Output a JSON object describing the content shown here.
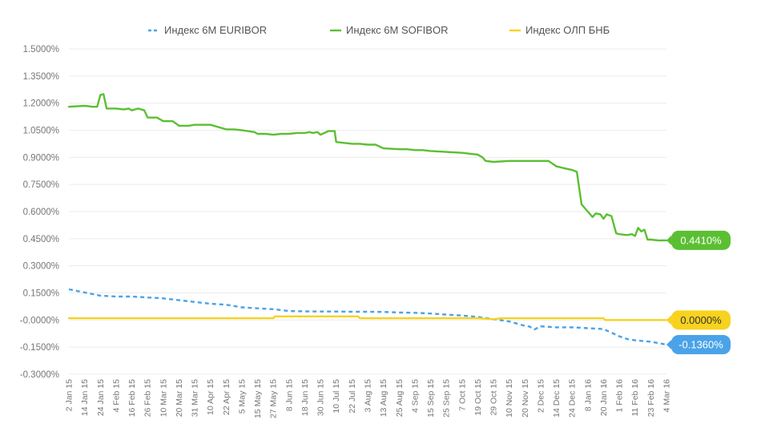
{
  "chart_data": {
    "type": "line",
    "title": "",
    "xlabel": "",
    "ylabel": "",
    "ylim": [
      -0.3,
      1.5
    ],
    "y_ticks": [
      "1.5000%",
      "1.3500%",
      "1.2000%",
      "1.0500%",
      "0.9000%",
      "0.7500%",
      "0.6000%",
      "0.4500%",
      "0.3000%",
      "0.1500%",
      "-0.0000%",
      "-0.1500%",
      "-0.3000%"
    ],
    "x_ticks": [
      "2 Jan 15",
      "14 Jan 15",
      "24 Jan 15",
      "4 Feb 15",
      "16 Feb 15",
      "26 Feb 15",
      "10 Mar 15",
      "20 Mar 15",
      "31 Mar 15",
      "10 Apr 15",
      "22 Apr 15",
      "5 May 15",
      "15 May 15",
      "27 May 15",
      "8 Jun 15",
      "18 Jun 15",
      "30 Jun 15",
      "10 Jul 15",
      "22 Jul 15",
      "3 Aug 15",
      "13 Aug 15",
      "25 Aug 15",
      "4 Sep 15",
      "15 Sep 15",
      "25 Sep 15",
      "7 Oct 15",
      "19 Oct 15",
      "29 Oct 15",
      "10 Nov 15",
      "20 Nov 15",
      "2 Dec 15",
      "14 Dec 15",
      "24 Dec 15",
      "8 Jan 16",
      "20 Jan 16",
      "1 Feb 16",
      "11 Feb 16",
      "23 Feb 16",
      "4 Mar 16"
    ],
    "legend_position": "top",
    "series": [
      {
        "name": "Индекс 6M EURIBOR",
        "color": "#4aa3e8",
        "style": "dashed",
        "end_label": "-0.1360%",
        "x": [
          0,
          2,
          3,
          4,
          6,
          8,
          9,
          10,
          11,
          12,
          13,
          14,
          15,
          16,
          17,
          18,
          19,
          20,
          21,
          22,
          23,
          24,
          25,
          26,
          27,
          28,
          28.5,
          29,
          29.3,
          29.6,
          30,
          31,
          32,
          33,
          34,
          34.5,
          35,
          35.5,
          36,
          37,
          38
        ],
        "values": [
          0.17,
          0.135,
          0.13,
          0.13,
          0.12,
          0.1,
          0.09,
          0.085,
          0.07,
          0.065,
          0.06,
          0.05,
          0.048,
          0.047,
          0.047,
          0.046,
          0.046,
          0.045,
          0.042,
          0.04,
          0.036,
          0.03,
          0.025,
          0.017,
          0.005,
          -0.008,
          -0.02,
          -0.032,
          -0.036,
          -0.052,
          -0.035,
          -0.04,
          -0.04,
          -0.045,
          -0.05,
          -0.07,
          -0.09,
          -0.105,
          -0.112,
          -0.12,
          -0.136
        ]
      },
      {
        "name": "Индекс 6M SOFIBOR",
        "color": "#5bbf32",
        "style": "solid",
        "end_label": "0.4410%",
        "x": [
          0,
          1,
          1.5,
          1.8,
          2,
          2.2,
          2.4,
          3,
          3.5,
          3.8,
          4,
          4.4,
          4.8,
          5,
          5.6,
          6,
          6.6,
          7,
          7.6,
          8,
          8.5,
          9,
          10,
          10.5,
          11,
          11.8,
          12,
          12.5,
          13,
          13.5,
          14,
          14.5,
          15,
          15.3,
          15.5,
          15.8,
          16,
          16.5,
          16.9,
          17,
          17.5,
          18,
          18.5,
          19,
          19.5,
          20,
          21,
          21.5,
          22,
          22.5,
          23,
          24,
          25,
          25.5,
          26,
          26.3,
          26.5,
          27,
          28,
          29,
          30,
          30.5,
          31,
          31.5,
          32,
          32.3,
          32.6,
          33,
          33.3,
          33.5,
          33.8,
          34,
          34.2,
          34.5,
          34.8,
          35,
          35.5,
          35.8,
          36,
          36.2,
          36.4,
          36.6,
          36.8,
          37,
          37.5,
          38
        ],
        "values": [
          1.18,
          1.185,
          1.18,
          1.18,
          1.245,
          1.25,
          1.17,
          1.17,
          1.165,
          1.17,
          1.16,
          1.17,
          1.16,
          1.12,
          1.12,
          1.1,
          1.1,
          1.075,
          1.075,
          1.08,
          1.08,
          1.08,
          1.055,
          1.055,
          1.05,
          1.04,
          1.03,
          1.03,
          1.025,
          1.03,
          1.03,
          1.035,
          1.035,
          1.04,
          1.035,
          1.04,
          1.025,
          1.045,
          1.045,
          0.985,
          0.98,
          0.975,
          0.975,
          0.97,
          0.97,
          0.95,
          0.945,
          0.945,
          0.94,
          0.94,
          0.935,
          0.93,
          0.925,
          0.92,
          0.915,
          0.9,
          0.88,
          0.875,
          0.88,
          0.88,
          0.88,
          0.88,
          0.85,
          0.84,
          0.83,
          0.82,
          0.64,
          0.6,
          0.57,
          0.59,
          0.585,
          0.56,
          0.585,
          0.575,
          0.48,
          0.475,
          0.47,
          0.475,
          0.465,
          0.51,
          0.49,
          0.5,
          0.445,
          0.445,
          0.44,
          0.441
        ]
      },
      {
        "name": "Индекс ОЛП БНБ",
        "color": "#f7d21f",
        "style": "solid",
        "end_label": "0.0000%",
        "x": [
          0,
          13,
          13.1,
          18.4,
          18.5,
          26,
          27,
          27.5,
          34,
          34.1,
          38
        ],
        "values": [
          0.01,
          0.01,
          0.02,
          0.02,
          0.01,
          0.01,
          0.005,
          0.01,
          0.01,
          0.0,
          0.0
        ]
      }
    ]
  }
}
